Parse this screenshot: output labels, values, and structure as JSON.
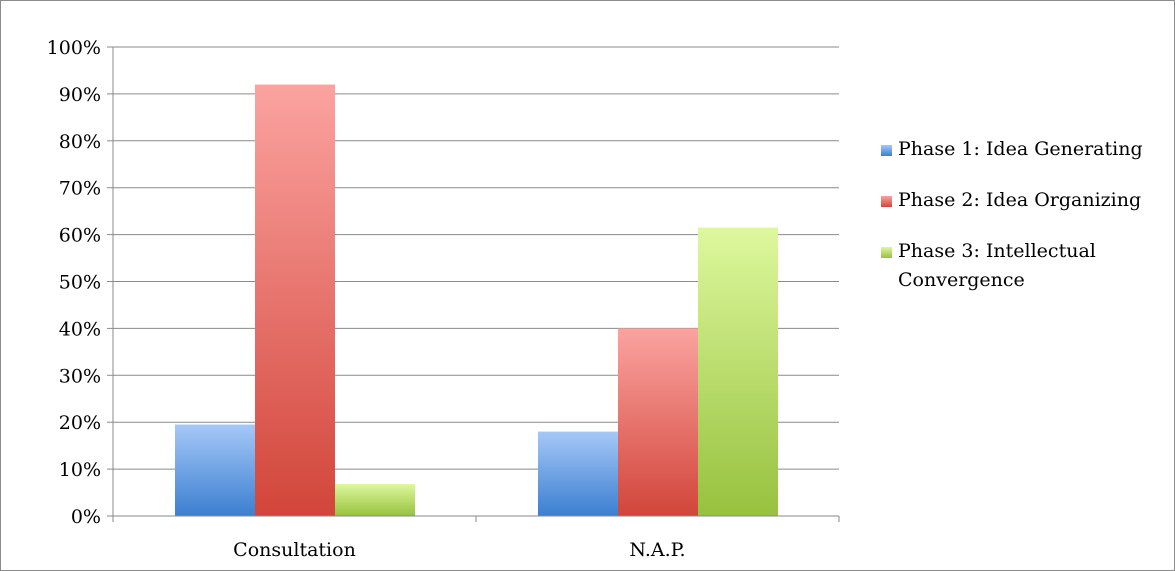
{
  "chart_data": {
    "type": "bar",
    "categories": [
      "Consultation",
      "N.A.P."
    ],
    "series": [
      {
        "name": "Phase 1: Idea Generating",
        "values": [
          0.195,
          0.18
        ]
      },
      {
        "name": "Phase 2: Idea Organizing",
        "values": [
          0.92,
          0.4
        ]
      },
      {
        "name": "Phase 3: Intellectual Convergence",
        "values": [
          0.068,
          0.615
        ]
      }
    ],
    "y_tick_labels": [
      "0%",
      "10%",
      "20%",
      "30%",
      "40%",
      "50%",
      "60%",
      "70%",
      "80%",
      "90%",
      "100%"
    ],
    "ylim": [
      0,
      1
    ],
    "grid": true,
    "legend": "right",
    "colors": [
      {
        "top": "#a6c8f7",
        "bottom": "#3b7fd1"
      },
      {
        "top": "#fba3a0",
        "bottom": "#d2453a"
      },
      {
        "top": "#ddf89d",
        "bottom": "#97c13e"
      }
    ]
  }
}
